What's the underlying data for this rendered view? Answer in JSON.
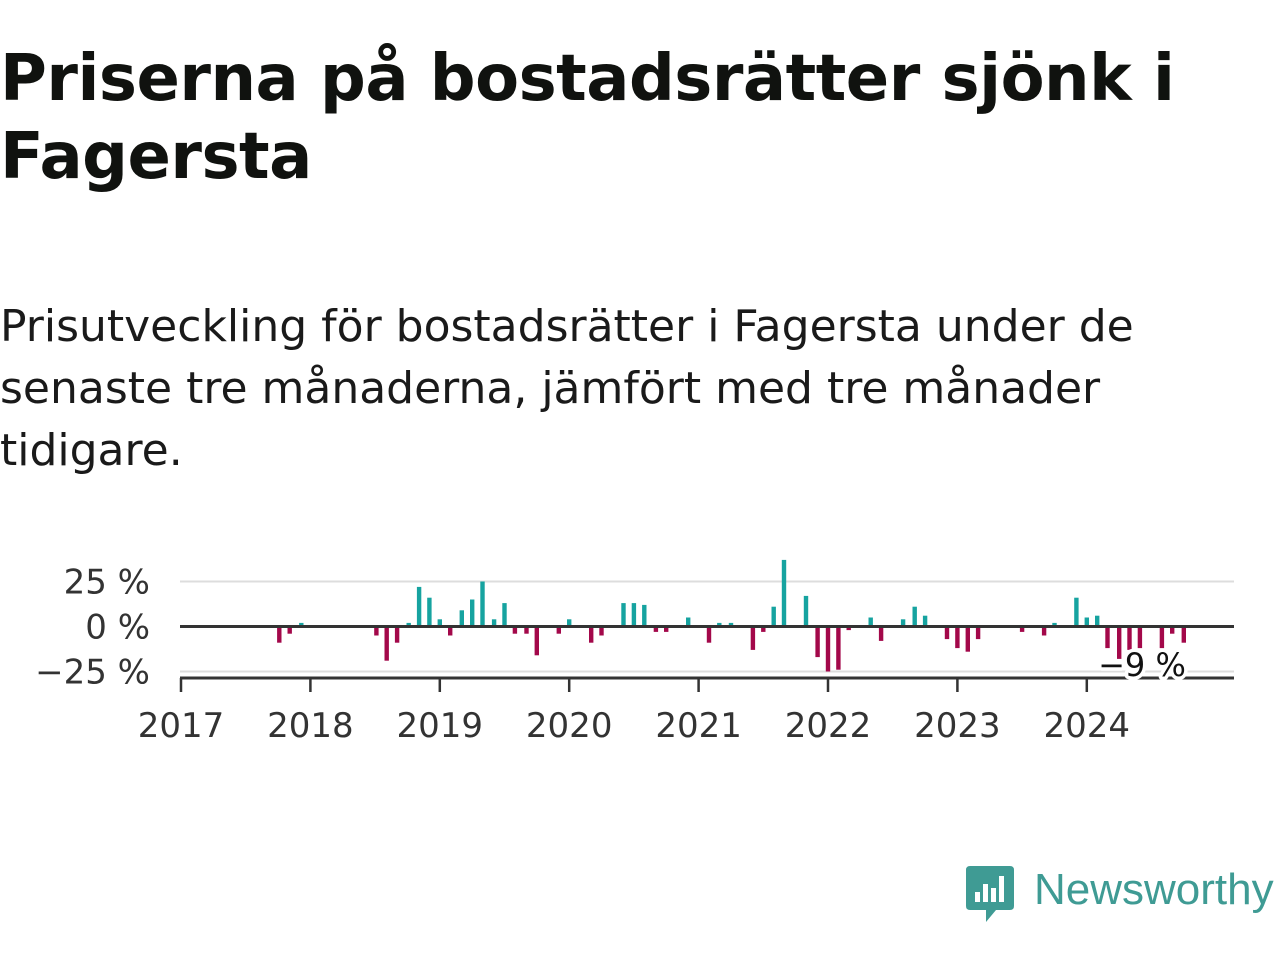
{
  "title": "Priserna på bostadsrätter sjönk i Fagersta",
  "subtitle": "Prisutveckling för bostadsrätter i Fagersta under de senaste tre månaderna, jämfört med tre månader tidigare.",
  "brand": {
    "name": "Newsworthy",
    "icon": "newsworthy-logo-icon",
    "color": "#3f9b94"
  },
  "colors": {
    "positive": "#16a3a0",
    "negative": "#a3084a",
    "grid": "#dddddd",
    "axis": "#333333",
    "text": "#333333"
  },
  "chart_data": {
    "type": "bar",
    "xlabel": "",
    "ylabel": "",
    "x_start": 2017,
    "x_end": 2025,
    "ylim": [
      -25,
      30
    ],
    "y_ticks": [
      {
        "value": 25,
        "label": "25 %"
      },
      {
        "value": 0,
        "label": "0 %"
      },
      {
        "value": -25,
        "label": "−25 %"
      }
    ],
    "x_ticks": [
      "2017",
      "2018",
      "2019",
      "2020",
      "2021",
      "2022",
      "2023",
      "2024"
    ],
    "grid": true,
    "last_value_label": "−9 %",
    "series": [
      {
        "name": "Prisutveckling",
        "points": [
          {
            "x": 2017.76,
            "v": -9
          },
          {
            "x": 2017.84,
            "v": -4
          },
          {
            "x": 2017.93,
            "v": 2
          },
          {
            "x": 2018.51,
            "v": -5
          },
          {
            "x": 2018.59,
            "v": -19
          },
          {
            "x": 2018.67,
            "v": -9
          },
          {
            "x": 2018.76,
            "v": 2
          },
          {
            "x": 2018.84,
            "v": 22
          },
          {
            "x": 2018.92,
            "v": 16
          },
          {
            "x": 2019.0,
            "v": 4
          },
          {
            "x": 2019.08,
            "v": -5
          },
          {
            "x": 2019.17,
            "v": 9
          },
          {
            "x": 2019.25,
            "v": 15
          },
          {
            "x": 2019.33,
            "v": 25
          },
          {
            "x": 2019.42,
            "v": 4
          },
          {
            "x": 2019.5,
            "v": 13
          },
          {
            "x": 2019.58,
            "v": -4
          },
          {
            "x": 2019.67,
            "v": -4
          },
          {
            "x": 2019.75,
            "v": -16
          },
          {
            "x": 2019.92,
            "v": -4
          },
          {
            "x": 2020.0,
            "v": 4
          },
          {
            "x": 2020.17,
            "v": -9
          },
          {
            "x": 2020.25,
            "v": -5
          },
          {
            "x": 2020.42,
            "v": 13
          },
          {
            "x": 2020.5,
            "v": 13
          },
          {
            "x": 2020.58,
            "v": 12
          },
          {
            "x": 2020.67,
            "v": -3
          },
          {
            "x": 2020.75,
            "v": -3
          },
          {
            "x": 2020.92,
            "v": 5
          },
          {
            "x": 2021.08,
            "v": -9
          },
          {
            "x": 2021.16,
            "v": 2
          },
          {
            "x": 2021.25,
            "v": 2
          },
          {
            "x": 2021.42,
            "v": -13
          },
          {
            "x": 2021.5,
            "v": -3
          },
          {
            "x": 2021.58,
            "v": 11
          },
          {
            "x": 2021.66,
            "v": 37
          },
          {
            "x": 2021.83,
            "v": 17
          },
          {
            "x": 2021.92,
            "v": -17
          },
          {
            "x": 2022.0,
            "v": -25
          },
          {
            "x": 2022.08,
            "v": -24
          },
          {
            "x": 2022.16,
            "v": -2
          },
          {
            "x": 2022.33,
            "v": 5
          },
          {
            "x": 2022.41,
            "v": -8
          },
          {
            "x": 2022.58,
            "v": 4
          },
          {
            "x": 2022.67,
            "v": 11
          },
          {
            "x": 2022.75,
            "v": 6
          },
          {
            "x": 2022.92,
            "v": -7
          },
          {
            "x": 2023.0,
            "v": -12
          },
          {
            "x": 2023.08,
            "v": -14
          },
          {
            "x": 2023.16,
            "v": -7
          },
          {
            "x": 2023.5,
            "v": -3
          },
          {
            "x": 2023.67,
            "v": -5
          },
          {
            "x": 2023.75,
            "v": 2
          },
          {
            "x": 2023.92,
            "v": 16
          },
          {
            "x": 2024.0,
            "v": 5
          },
          {
            "x": 2024.08,
            "v": 6
          },
          {
            "x": 2024.16,
            "v": -12
          },
          {
            "x": 2024.25,
            "v": -18
          },
          {
            "x": 2024.33,
            "v": -13
          },
          {
            "x": 2024.41,
            "v": -12
          },
          {
            "x": 2024.58,
            "v": -12
          },
          {
            "x": 2024.66,
            "v": -4
          },
          {
            "x": 2024.75,
            "v": -9
          }
        ]
      }
    ]
  }
}
